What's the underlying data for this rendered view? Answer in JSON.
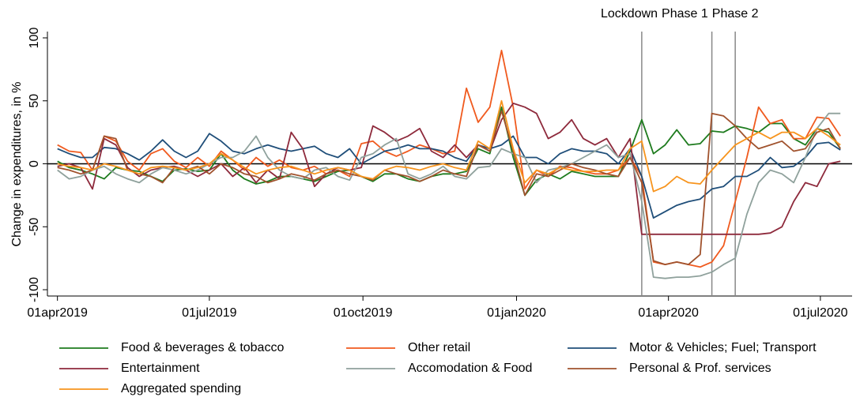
{
  "chart_data": {
    "type": "line",
    "y_label": "Change in expenditures, in %",
    "x": [
      "2019-04-01",
      "2019-04-08",
      "2019-04-15",
      "2019-04-22",
      "2019-04-29",
      "2019-05-06",
      "2019-05-13",
      "2019-05-20",
      "2019-05-27",
      "2019-06-03",
      "2019-06-10",
      "2019-06-17",
      "2019-06-24",
      "2019-07-01",
      "2019-07-08",
      "2019-07-15",
      "2019-07-22",
      "2019-07-29",
      "2019-08-05",
      "2019-08-12",
      "2019-08-19",
      "2019-08-26",
      "2019-09-02",
      "2019-09-09",
      "2019-09-16",
      "2019-09-23",
      "2019-09-30",
      "2019-10-07",
      "2019-10-14",
      "2019-10-21",
      "2019-10-28",
      "2019-11-04",
      "2019-11-11",
      "2019-11-18",
      "2019-11-25",
      "2019-12-02",
      "2019-12-09",
      "2019-12-16",
      "2019-12-23",
      "2019-12-30",
      "2020-01-06",
      "2020-01-13",
      "2020-01-20",
      "2020-01-27",
      "2020-02-03",
      "2020-02-10",
      "2020-02-17",
      "2020-02-24",
      "2020-03-02",
      "2020-03-09",
      "2020-03-16",
      "2020-03-23",
      "2020-03-30",
      "2020-04-06",
      "2020-04-13",
      "2020-04-20",
      "2020-04-27",
      "2020-05-04",
      "2020-05-11",
      "2020-05-18",
      "2020-05-25",
      "2020-06-01",
      "2020-06-08",
      "2020-06-15",
      "2020-06-22",
      "2020-06-29",
      "2020-07-06",
      "2020-07-13"
    ],
    "xlim": [
      "2019-03-26",
      "2020-07-20"
    ],
    "xticks": [
      {
        "value": "2019-04-01",
        "label": "01apr2019"
      },
      {
        "value": "2019-07-01",
        "label": "01jul2019"
      },
      {
        "value": "2019-10-01",
        "label": "01oct2019"
      },
      {
        "value": "2020-01-01",
        "label": "01jan2020"
      },
      {
        "value": "2020-04-01",
        "label": "01apr2020"
      },
      {
        "value": "2020-07-01",
        "label": "01jul2020"
      }
    ],
    "ylim": [
      -105,
      105
    ],
    "yticks": [
      -100,
      -50,
      0,
      50,
      100
    ],
    "hline": 0,
    "vlines": [
      {
        "x": "2020-03-16",
        "label": "Lockdown"
      },
      {
        "x": "2020-04-27",
        "label": "Phase 1"
      },
      {
        "x": "2020-05-11",
        "label": "Phase 2"
      }
    ],
    "series": [
      {
        "name": "Food & beverages & tobacco",
        "color": "#1e7b1e",
        "values": [
          2,
          -3,
          -5,
          -8,
          -12,
          -3,
          -5,
          -6,
          -10,
          -14,
          -5,
          -4,
          -6,
          -5,
          8,
          -5,
          -12,
          -16,
          -14,
          -10,
          -10,
          -12,
          -14,
          -10,
          -6,
          -5,
          -10,
          -14,
          -8,
          -8,
          -12,
          -14,
          -10,
          -8,
          -8,
          -6,
          12,
          8,
          45,
          5,
          -25,
          -13,
          -8,
          -12,
          -6,
          -8,
          -10,
          -10,
          -10,
          10,
          35,
          8,
          15,
          27,
          15,
          16,
          26,
          25,
          30,
          28,
          25,
          32,
          32,
          20,
          15,
          28,
          25,
          12
        ]
      },
      {
        "name": "Other retail",
        "color": "#f05a1e",
        "values": [
          15,
          10,
          9,
          -5,
          22,
          18,
          2,
          -5,
          8,
          12,
          2,
          -3,
          5,
          -2,
          10,
          3,
          -5,
          5,
          -2,
          3,
          -3,
          -5,
          -2,
          -8,
          -5,
          -10,
          16,
          18,
          10,
          6,
          10,
          15,
          12,
          8,
          10,
          60,
          33,
          45,
          90,
          45,
          -20,
          -5,
          -10,
          -2,
          -3,
          -6,
          -8,
          -8,
          -5,
          5,
          -10,
          -78,
          -80,
          -78,
          -80,
          -82,
          -78,
          -65,
          -30,
          5,
          45,
          32,
          35,
          20,
          20,
          37,
          36,
          22
        ]
      },
      {
        "name": "Motor & Vehicles; Fuel; Transport",
        "color": "#1f4e79",
        "values": [
          12,
          8,
          5,
          5,
          13,
          12,
          8,
          3,
          10,
          19,
          10,
          5,
          10,
          24,
          18,
          10,
          8,
          12,
          15,
          12,
          10,
          12,
          14,
          8,
          5,
          12,
          0,
          5,
          10,
          12,
          15,
          12,
          12,
          10,
          5,
          2,
          15,
          12,
          15,
          22,
          5,
          5,
          0,
          8,
          12,
          10,
          10,
          8,
          0,
          12,
          -10,
          -43,
          -38,
          -33,
          -30,
          -28,
          -20,
          -18,
          -10,
          -10,
          -5,
          5,
          -3,
          -2,
          5,
          16,
          17,
          11
        ]
      },
      {
        "name": "Entertainment",
        "color": "#8e2a3c",
        "values": [
          -2,
          0,
          -3,
          -20,
          20,
          15,
          -3,
          -10,
          -5,
          -3,
          -2,
          -5,
          -10,
          -5,
          0,
          -10,
          -3,
          -15,
          -5,
          -12,
          25,
          12,
          -18,
          -8,
          -3,
          -5,
          -3,
          30,
          25,
          18,
          22,
          28,
          10,
          5,
          15,
          5,
          15,
          10,
          35,
          48,
          45,
          40,
          20,
          25,
          35,
          20,
          15,
          20,
          5,
          20,
          -56,
          -56,
          -56,
          -56,
          -56,
          -56,
          -56,
          -56,
          -56,
          -56,
          -56,
          -55,
          -50,
          -30,
          -15,
          -18,
          0,
          2
        ]
      },
      {
        "name": "Accomodation & Food",
        "color": "#8fa19c",
        "values": [
          -5,
          -12,
          -10,
          -5,
          -2,
          -8,
          -12,
          -15,
          -8,
          -3,
          -5,
          -8,
          -5,
          0,
          5,
          5,
          10,
          22,
          5,
          -5,
          -10,
          -12,
          -5,
          -3,
          -10,
          -13,
          5,
          8,
          15,
          20,
          -8,
          -12,
          -8,
          -2,
          -10,
          -12,
          -3,
          -2,
          12,
          8,
          5,
          -15,
          -5,
          -3,
          0,
          5,
          10,
          15,
          5,
          8,
          -30,
          -90,
          -91,
          -90,
          -90,
          -89,
          -86,
          -80,
          -75,
          -40,
          -15,
          -5,
          -8,
          -15,
          5,
          28,
          40,
          40
        ]
      },
      {
        "name": "Personal & Prof. services",
        "color": "#a0522d",
        "values": [
          -3,
          -5,
          -8,
          -5,
          22,
          20,
          -5,
          -8,
          -10,
          -15,
          -3,
          -5,
          -2,
          -8,
          0,
          -3,
          -8,
          -10,
          -15,
          -12,
          -8,
          -10,
          -13,
          -8,
          -5,
          -8,
          -10,
          -13,
          -5,
          -8,
          -10,
          -14,
          -10,
          -5,
          -8,
          -10,
          15,
          10,
          42,
          10,
          -25,
          -8,
          -10,
          -5,
          0,
          -3,
          -5,
          -8,
          -10,
          5,
          -15,
          -77,
          -80,
          -78,
          -80,
          -72,
          40,
          38,
          30,
          20,
          12,
          15,
          18,
          10,
          12,
          25,
          28,
          12
        ]
      },
      {
        "name": "Aggregated spending",
        "color": "#f7941d",
        "values": [
          0,
          -2,
          -3,
          -5,
          0,
          -2,
          -5,
          -8,
          -3,
          -2,
          -3,
          -5,
          -3,
          0,
          8,
          3,
          -3,
          -8,
          -5,
          -3,
          -2,
          -5,
          -8,
          -5,
          -3,
          -5,
          -10,
          -12,
          -5,
          -2,
          -3,
          -5,
          -2,
          0,
          -3,
          -5,
          18,
          12,
          50,
          12,
          -15,
          -5,
          -8,
          -3,
          -5,
          -6,
          -6,
          -5,
          -5,
          12,
          18,
          -22,
          -18,
          -10,
          -15,
          -16,
          -5,
          5,
          15,
          20,
          25,
          20,
          25,
          25,
          20,
          28,
          22,
          15
        ]
      }
    ]
  }
}
